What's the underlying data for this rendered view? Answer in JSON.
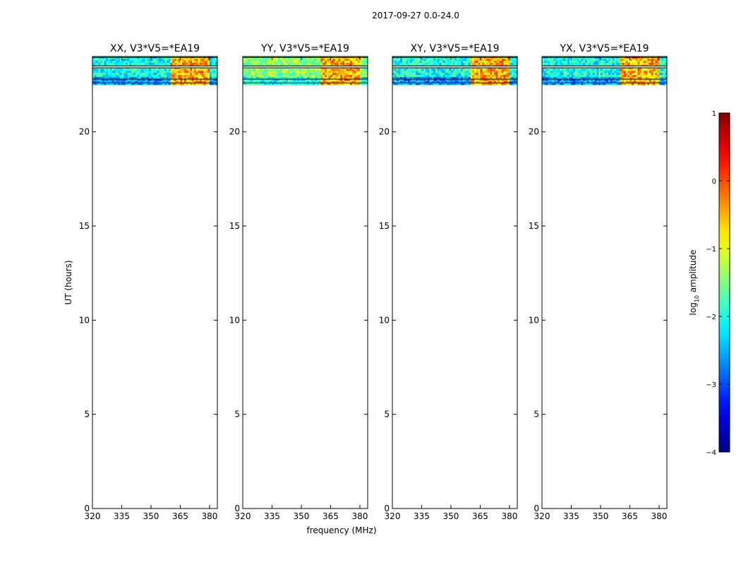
{
  "figure": {
    "suptitle": "2017-09-27 0.0-24.0",
    "xlabel": "frequency (MHz)",
    "ylabel": "UT (hours)"
  },
  "chart_data": {
    "type": "heatmap",
    "title": "2017-09-27 0.0-24.0",
    "xlabel": "frequency (MHz)",
    "ylabel": "UT (hours)",
    "xlim": [
      320,
      384
    ],
    "ylim": [
      0,
      24
    ],
    "xticks": [
      320,
      335,
      350,
      365,
      380
    ],
    "yticks": [
      0,
      5,
      10,
      15,
      20
    ],
    "data_time_range_hours": [
      22.5,
      24.0
    ],
    "flagged_time_rows_hours": [
      22.6,
      22.8,
      23.4,
      23.5,
      23.95
    ],
    "rfi_channel_range_mhz": [
      360,
      380
    ],
    "panels": [
      {
        "title": "XX, V3*V5=*EA19",
        "polarization": "XX",
        "baseline": "V3*V5=*EA19"
      },
      {
        "title": "YY, V3*V5=*EA19",
        "polarization": "YY",
        "baseline": "V3*V5=*EA19"
      },
      {
        "title": "XY, V3*V5=*EA19",
        "polarization": "XY",
        "baseline": "V3*V5=*EA19"
      },
      {
        "title": "YX, V3*V5=*EA19",
        "polarization": "YX",
        "baseline": "V3*V5=*EA19"
      }
    ],
    "colorbar": {
      "label": "log10 amplitude",
      "label_base": "log",
      "label_sub": "10",
      "label_rest": " amplitude",
      "range": [
        -4,
        1
      ],
      "ticks": [
        -4,
        -3,
        -2,
        -1,
        0,
        1
      ],
      "tick_labels": [
        "−4",
        "−3",
        "−2",
        "−1",
        "0",
        "1"
      ],
      "colormap": "jet"
    }
  }
}
